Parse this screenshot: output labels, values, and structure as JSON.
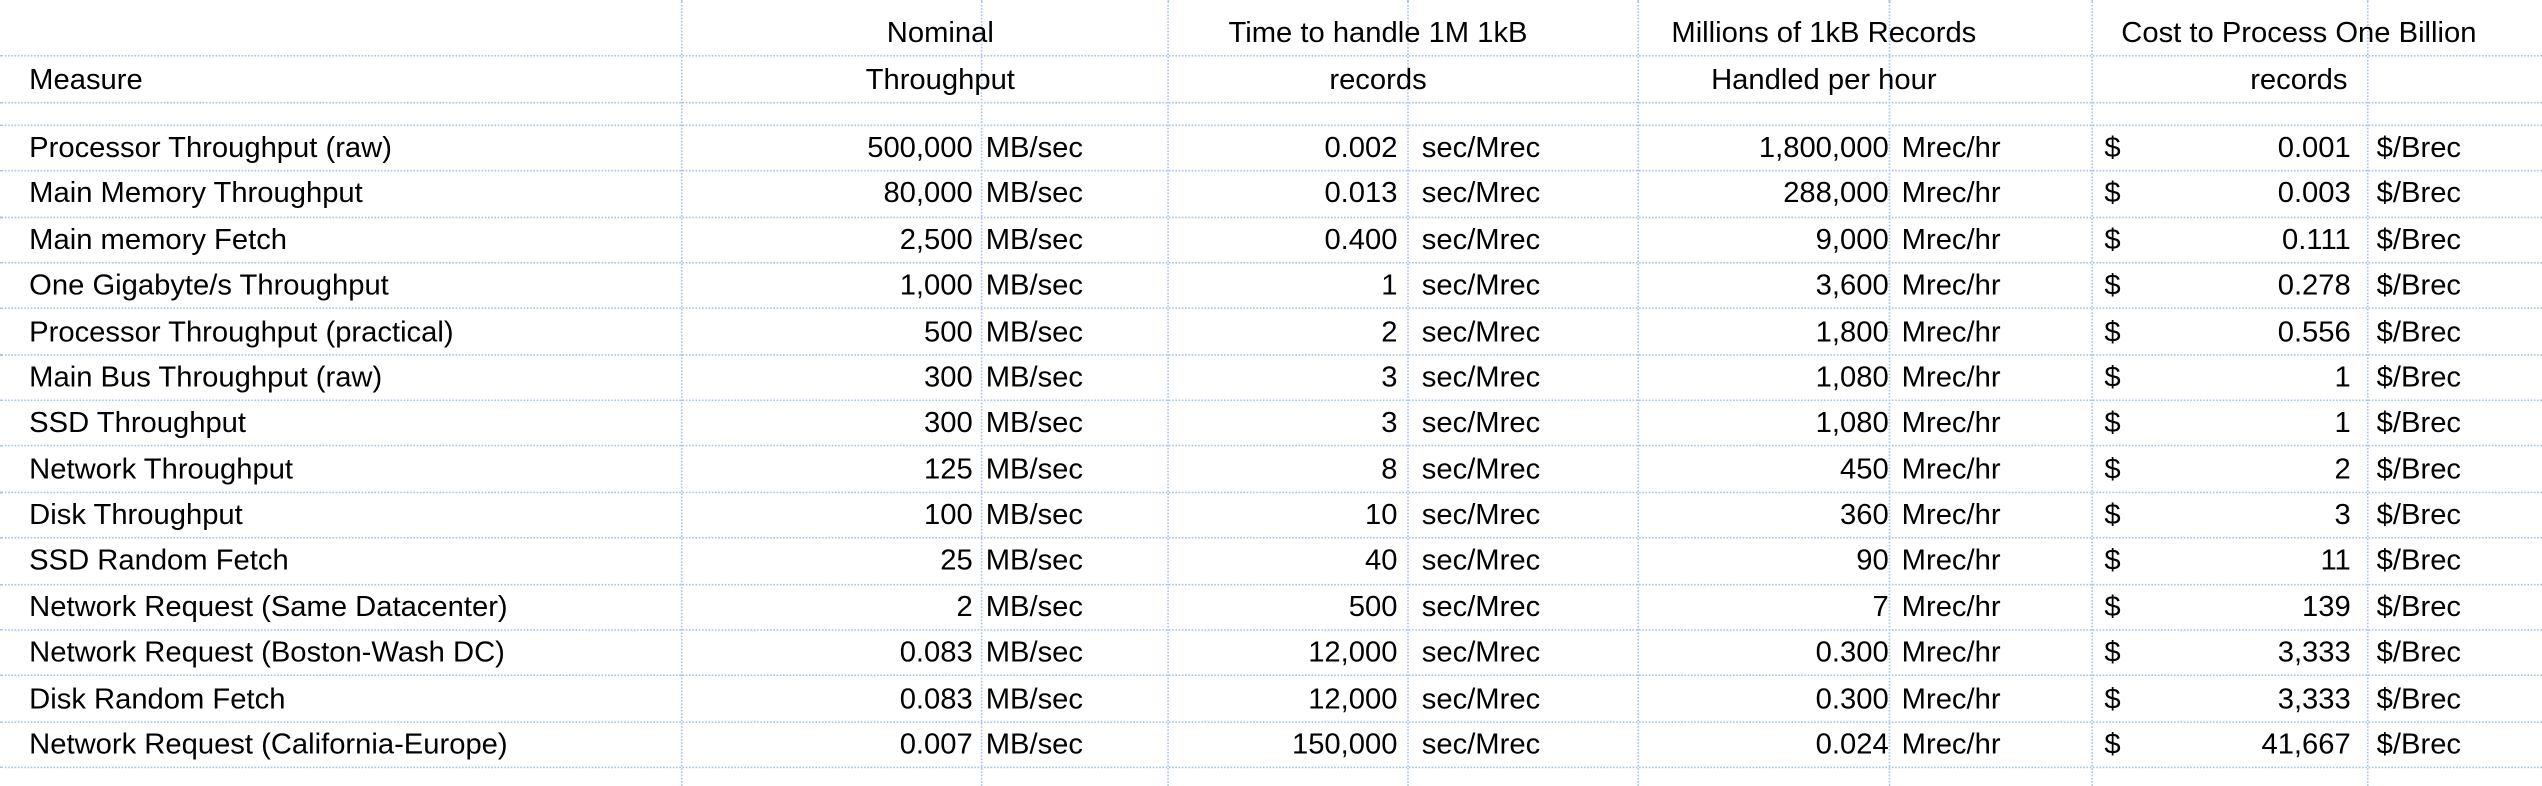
{
  "table": {
    "header": [
      [
        "Measure"
      ],
      [
        "Nominal",
        "Throughput"
      ],
      [
        "Time to handle 1M 1kB",
        "records"
      ],
      [
        "Millions of 1kB Records",
        "Handled per hour"
      ],
      [
        "Cost to Process One Billion",
        "records"
      ]
    ],
    "rows": [
      [
        "Processor Throughput (raw)",
        "500,000",
        "MB/sec",
        "0.002",
        "sec/Mrec",
        "1,800,000",
        "Mrec/hr",
        "$",
        "0.001",
        "$/Brec"
      ],
      [
        "Main Memory Throughput",
        "80,000",
        "MB/sec",
        "0.013",
        "sec/Mrec",
        "288,000",
        "Mrec/hr",
        "$",
        "0.003",
        "$/Brec"
      ],
      [
        "Main memory Fetch",
        "2,500",
        "MB/sec",
        "0.400",
        "sec/Mrec",
        "9,000",
        "Mrec/hr",
        "$",
        "0.111",
        "$/Brec"
      ],
      [
        "One Gigabyte/s Throughput",
        "1,000",
        "MB/sec",
        "1",
        "sec/Mrec",
        "3,600",
        "Mrec/hr",
        "$",
        "0.278",
        "$/Brec"
      ],
      [
        "Processor Throughput (practical)",
        "500",
        "MB/sec",
        "2",
        "sec/Mrec",
        "1,800",
        "Mrec/hr",
        "$",
        "0.556",
        "$/Brec"
      ],
      [
        "Main Bus Throughput (raw)",
        "300",
        "MB/sec",
        "3",
        "sec/Mrec",
        "1,080",
        "Mrec/hr",
        "$",
        "1",
        "$/Brec"
      ],
      [
        "SSD Throughput",
        "300",
        "MB/sec",
        "3",
        "sec/Mrec",
        "1,080",
        "Mrec/hr",
        "$",
        "1",
        "$/Brec"
      ],
      [
        "Network Throughput",
        "125",
        "MB/sec",
        "8",
        "sec/Mrec",
        "450",
        "Mrec/hr",
        "$",
        "2",
        "$/Brec"
      ],
      [
        "Disk Throughput",
        "100",
        "MB/sec",
        "10",
        "sec/Mrec",
        "360",
        "Mrec/hr",
        "$",
        "3",
        "$/Brec"
      ],
      [
        "SSD Random Fetch",
        "25",
        "MB/sec",
        "40",
        "sec/Mrec",
        "90",
        "Mrec/hr",
        "$",
        "11",
        "$/Brec"
      ],
      [
        "Network Request (Same Datacenter)",
        "2",
        "MB/sec",
        "500",
        "sec/Mrec",
        "7",
        "Mrec/hr",
        "$",
        "139",
        "$/Brec"
      ],
      [
        "Network Request (Boston-Wash DC)",
        "0.083",
        "MB/sec",
        "12,000",
        "sec/Mrec",
        "0.300",
        "Mrec/hr",
        "$",
        "3,333",
        "$/Brec"
      ],
      [
        "Disk Random Fetch",
        "0.083",
        "MB/sec",
        "12,000",
        "sec/Mrec",
        "0.300",
        "Mrec/hr",
        "$",
        "3,333",
        "$/Brec"
      ],
      [
        "Network Request (California-Europe)",
        "0.007",
        "MB/sec",
        "150,000",
        "sec/Mrec",
        "0.024",
        "Mrec/hr",
        "$",
        "41,667",
        "$/Brec"
      ]
    ]
  }
}
